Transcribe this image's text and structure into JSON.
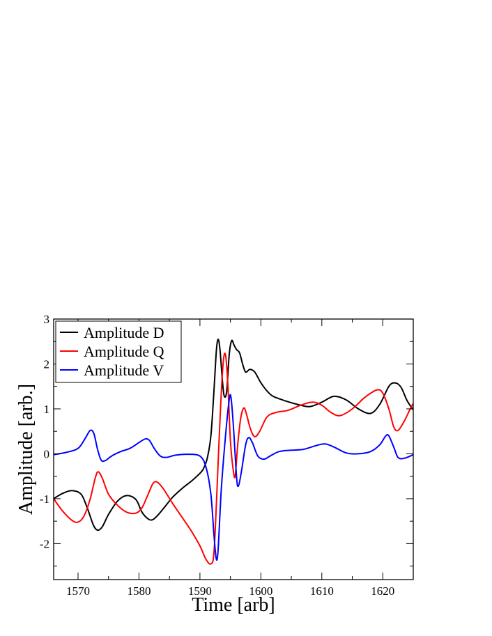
{
  "chart_data": {
    "type": "line",
    "title": "",
    "xlabel": "Time [arb]",
    "ylabel": "Amplitude [arb.]",
    "xlim": [
      1566,
      1625
    ],
    "ylim": [
      -2.8,
      3
    ],
    "xticks": [
      1570,
      1580,
      1590,
      1600,
      1610,
      1620
    ],
    "xtick_labels": [
      "1570",
      "1580",
      "1590",
      "1600",
      "1610",
      "1620"
    ],
    "yticks": [
      -2,
      -1,
      0,
      1,
      2,
      3
    ],
    "ytick_labels": [
      "-2",
      "-1",
      "0",
      "1",
      "2",
      "3"
    ],
    "grid": false,
    "legend_position": "top-left",
    "series": [
      {
        "name": "Amplitude D",
        "color": "#000000",
        "points": [
          [
            1566,
            -1.0
          ],
          [
            1567.5,
            -0.88
          ],
          [
            1569,
            -0.82
          ],
          [
            1570.5,
            -0.9
          ],
          [
            1571.5,
            -1.2
          ],
          [
            1572.5,
            -1.58
          ],
          [
            1573.2,
            -1.7
          ],
          [
            1574,
            -1.62
          ],
          [
            1575,
            -1.35
          ],
          [
            1576.5,
            -1.05
          ],
          [
            1578,
            -0.93
          ],
          [
            1579.5,
            -1.02
          ],
          [
            1580.5,
            -1.3
          ],
          [
            1581.5,
            -1.45
          ],
          [
            1582.2,
            -1.47
          ],
          [
            1583,
            -1.38
          ],
          [
            1584,
            -1.22
          ],
          [
            1585.5,
            -0.97
          ],
          [
            1587,
            -0.78
          ],
          [
            1588.5,
            -0.62
          ],
          [
            1589.5,
            -0.5
          ],
          [
            1590.5,
            -0.35
          ],
          [
            1591.2,
            -0.1
          ],
          [
            1591.8,
            0.4
          ],
          [
            1592.3,
            1.4
          ],
          [
            1592.7,
            2.3
          ],
          [
            1593,
            2.55
          ],
          [
            1593.3,
            2.3
          ],
          [
            1593.7,
            1.6
          ],
          [
            1594,
            1.28
          ],
          [
            1594.4,
            1.4
          ],
          [
            1594.8,
            2.2
          ],
          [
            1595.2,
            2.52
          ],
          [
            1595.6,
            2.42
          ],
          [
            1596,
            2.32
          ],
          [
            1596.5,
            2.25
          ],
          [
            1597,
            2.0
          ],
          [
            1597.5,
            1.82
          ],
          [
            1598.2,
            1.88
          ],
          [
            1599,
            1.82
          ],
          [
            1600,
            1.58
          ],
          [
            1601,
            1.4
          ],
          [
            1602,
            1.28
          ],
          [
            1604,
            1.18
          ],
          [
            1606,
            1.1
          ],
          [
            1608,
            1.05
          ],
          [
            1610,
            1.15
          ],
          [
            1612,
            1.28
          ],
          [
            1614,
            1.2
          ],
          [
            1616,
            1.0
          ],
          [
            1618,
            0.9
          ],
          [
            1619.5,
            1.1
          ],
          [
            1621,
            1.5
          ],
          [
            1622,
            1.58
          ],
          [
            1623,
            1.48
          ],
          [
            1624,
            1.18
          ],
          [
            1625,
            0.98
          ]
        ]
      },
      {
        "name": "Amplitude Q",
        "color": "#ff0000",
        "points": [
          [
            1566,
            -1.0
          ],
          [
            1567.5,
            -1.28
          ],
          [
            1569,
            -1.48
          ],
          [
            1570,
            -1.52
          ],
          [
            1571,
            -1.38
          ],
          [
            1572,
            -1.0
          ],
          [
            1572.8,
            -0.55
          ],
          [
            1573.3,
            -0.4
          ],
          [
            1574,
            -0.55
          ],
          [
            1575,
            -0.9
          ],
          [
            1576.5,
            -1.15
          ],
          [
            1578,
            -1.3
          ],
          [
            1579.5,
            -1.32
          ],
          [
            1580.5,
            -1.2
          ],
          [
            1581.5,
            -0.9
          ],
          [
            1582.3,
            -0.66
          ],
          [
            1583,
            -0.63
          ],
          [
            1584,
            -0.78
          ],
          [
            1585.5,
            -1.1
          ],
          [
            1587,
            -1.4
          ],
          [
            1588.5,
            -1.7
          ],
          [
            1590,
            -2.05
          ],
          [
            1591,
            -2.35
          ],
          [
            1591.8,
            -2.45
          ],
          [
            1592.3,
            -2.2
          ],
          [
            1592.8,
            -0.8
          ],
          [
            1593.3,
            0.8
          ],
          [
            1593.8,
            2.0
          ],
          [
            1594.2,
            2.2
          ],
          [
            1594.6,
            1.5
          ],
          [
            1595,
            0.3
          ],
          [
            1595.5,
            -0.4
          ],
          [
            1595.8,
            -0.48
          ],
          [
            1596.2,
            0.2
          ],
          [
            1596.7,
            0.8
          ],
          [
            1597.2,
            1.02
          ],
          [
            1597.6,
            0.9
          ],
          [
            1598.3,
            0.55
          ],
          [
            1599,
            0.38
          ],
          [
            1599.8,
            0.5
          ],
          [
            1601,
            0.82
          ],
          [
            1602.5,
            0.92
          ],
          [
            1604.5,
            0.97
          ],
          [
            1606.5,
            1.08
          ],
          [
            1608.5,
            1.15
          ],
          [
            1610,
            1.08
          ],
          [
            1611.5,
            0.92
          ],
          [
            1613,
            0.85
          ],
          [
            1615,
            1.0
          ],
          [
            1617,
            1.25
          ],
          [
            1619,
            1.42
          ],
          [
            1620,
            1.35
          ],
          [
            1621,
            1.0
          ],
          [
            1621.8,
            0.6
          ],
          [
            1622.5,
            0.52
          ],
          [
            1623.5,
            0.72
          ],
          [
            1624.5,
            1.0
          ],
          [
            1625,
            1.12
          ]
        ]
      },
      {
        "name": "Amplitude V",
        "color": "#0000ff",
        "points": [
          [
            1566,
            -0.02
          ],
          [
            1568,
            0.03
          ],
          [
            1570,
            0.12
          ],
          [
            1571.2,
            0.35
          ],
          [
            1572,
            0.52
          ],
          [
            1572.6,
            0.45
          ],
          [
            1573.2,
            0.1
          ],
          [
            1573.8,
            -0.14
          ],
          [
            1574.5,
            -0.15
          ],
          [
            1575.5,
            -0.05
          ],
          [
            1577,
            0.05
          ],
          [
            1578.5,
            0.12
          ],
          [
            1580,
            0.25
          ],
          [
            1581,
            0.33
          ],
          [
            1581.7,
            0.3
          ],
          [
            1582.5,
            0.12
          ],
          [
            1583.5,
            -0.05
          ],
          [
            1584.5,
            -0.08
          ],
          [
            1586,
            -0.03
          ],
          [
            1588,
            -0.01
          ],
          [
            1590,
            -0.05
          ],
          [
            1591,
            -0.3
          ],
          [
            1591.8,
            -0.9
          ],
          [
            1592.3,
            -1.8
          ],
          [
            1592.7,
            -2.35
          ],
          [
            1593,
            -2.1
          ],
          [
            1593.5,
            -0.8
          ],
          [
            1594.2,
            0.4
          ],
          [
            1594.8,
            1.2
          ],
          [
            1595.1,
            1.25
          ],
          [
            1595.5,
            0.6
          ],
          [
            1596,
            -0.5
          ],
          [
            1596.3,
            -0.72
          ],
          [
            1596.8,
            -0.4
          ],
          [
            1597.5,
            0.2
          ],
          [
            1598,
            0.36
          ],
          [
            1598.6,
            0.25
          ],
          [
            1599.5,
            -0.05
          ],
          [
            1600.5,
            -0.12
          ],
          [
            1601.5,
            -0.05
          ],
          [
            1603,
            0.05
          ],
          [
            1605,
            0.08
          ],
          [
            1607,
            0.1
          ],
          [
            1609,
            0.18
          ],
          [
            1610.5,
            0.22
          ],
          [
            1612,
            0.15
          ],
          [
            1614,
            0.02
          ],
          [
            1616,
            0.0
          ],
          [
            1618,
            0.05
          ],
          [
            1619.5,
            0.2
          ],
          [
            1620.5,
            0.4
          ],
          [
            1621,
            0.4
          ],
          [
            1621.8,
            0.15
          ],
          [
            1622.5,
            -0.08
          ],
          [
            1623.5,
            -0.1
          ],
          [
            1625,
            -0.02
          ]
        ]
      }
    ]
  }
}
